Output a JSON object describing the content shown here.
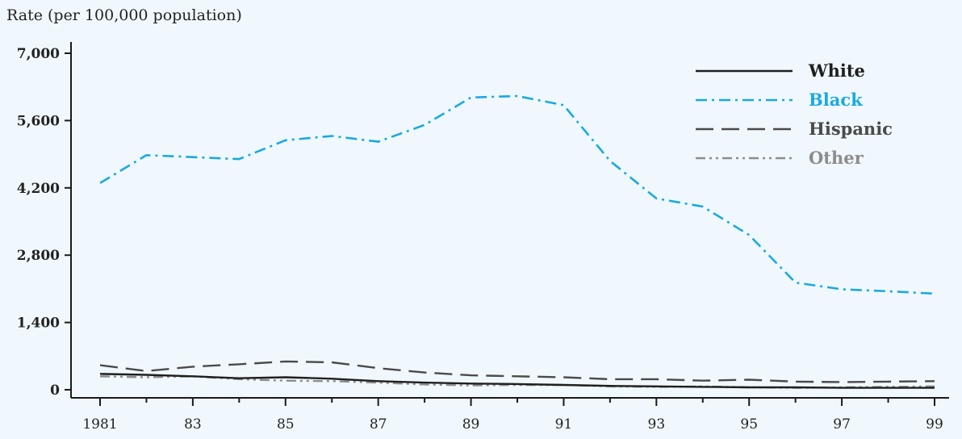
{
  "chart_data": {
    "type": "line",
    "title": "",
    "xlabel": "",
    "ylabel": "Rate (per 100,000 population)",
    "x": [
      1981,
      1982,
      1983,
      1984,
      1985,
      1986,
      1987,
      1988,
      1989,
      1990,
      1991,
      1992,
      1993,
      1994,
      1995,
      1996,
      1997,
      1998,
      1999
    ],
    "x_tick_labels": [
      "1981",
      "83",
      "85",
      "87",
      "89",
      "91",
      "93",
      "95",
      "97",
      "99"
    ],
    "x_tick_values": [
      1981,
      1983,
      1985,
      1987,
      1989,
      1991,
      1993,
      1995,
      1997,
      1999
    ],
    "y_ticks": [
      0,
      1400,
      2800,
      4200,
      5600,
      7000
    ],
    "y_tick_labels": [
      "0",
      "1,400",
      "2,800",
      "4,200",
      "5,600",
      "7,000"
    ],
    "xlim": [
      1981,
      1999
    ],
    "ylim": [
      0,
      7000
    ],
    "grid": false,
    "legend_position": "top-right",
    "series": [
      {
        "name": "White",
        "color": "#1f1f1f",
        "dash": "solid",
        "values": [
          330,
          310,
          280,
          240,
          260,
          230,
          180,
          150,
          130,
          120,
          100,
          80,
          70,
          60,
          50,
          50,
          40,
          40,
          40
        ]
      },
      {
        "name": "Black",
        "color": "#1aa9e1",
        "dash": "dash-dot",
        "values": [
          4300,
          4880,
          4840,
          4800,
          5190,
          5280,
          5160,
          5510,
          6080,
          6110,
          5920,
          4760,
          3980,
          3810,
          3220,
          2230,
          2090,
          2050,
          2000
        ]
      },
      {
        "name": "Hispanic",
        "color": "#4a4a4a",
        "dash": "long-dash",
        "values": [
          510,
          390,
          480,
          530,
          590,
          570,
          450,
          360,
          300,
          280,
          260,
          220,
          220,
          190,
          210,
          170,
          160,
          170,
          180
        ]
      },
      {
        "name": "Other",
        "color": "#8c8c8c",
        "dash": "dash-dot-dot",
        "values": [
          280,
          260,
          280,
          220,
          190,
          180,
          150,
          110,
          90,
          100,
          100,
          70,
          60,
          70,
          50,
          40,
          50,
          60,
          70
        ]
      }
    ]
  }
}
